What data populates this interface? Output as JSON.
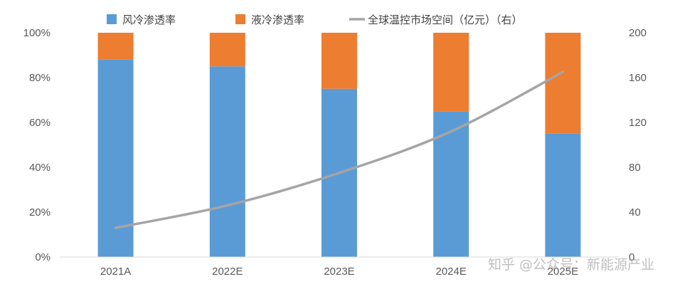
{
  "chart_data": {
    "type": "bar",
    "stacked": true,
    "categories": [
      "2021A",
      "2022E",
      "2023E",
      "2024E",
      "2025E"
    ],
    "series": [
      {
        "name": "风冷渗透率",
        "kind": "bar",
        "axis": "left",
        "color": "#5B9BD5",
        "values": [
          88,
          85,
          75,
          65,
          55
        ]
      },
      {
        "name": "液冷渗透率",
        "kind": "bar",
        "axis": "left",
        "color": "#ED7D31",
        "values": [
          12,
          15,
          25,
          35,
          45
        ]
      },
      {
        "name": "全球温控市场空间（亿元）（右）",
        "kind": "line",
        "axis": "right",
        "color": "#A5A5A5",
        "values": [
          26,
          46,
          75,
          112,
          165
        ]
      }
    ],
    "y_left": {
      "min": 0,
      "max": 100,
      "step": 20,
      "ticks": [
        "0%",
        "20%",
        "40%",
        "60%",
        "80%",
        "100%"
      ]
    },
    "y_right": {
      "min": 0,
      "max": 200,
      "step": 40,
      "ticks": [
        "0",
        "40",
        "80",
        "120",
        "160",
        "200"
      ]
    },
    "legend_position": "top",
    "grid": false
  },
  "watermark": "知乎 @公众号：新能源产业"
}
